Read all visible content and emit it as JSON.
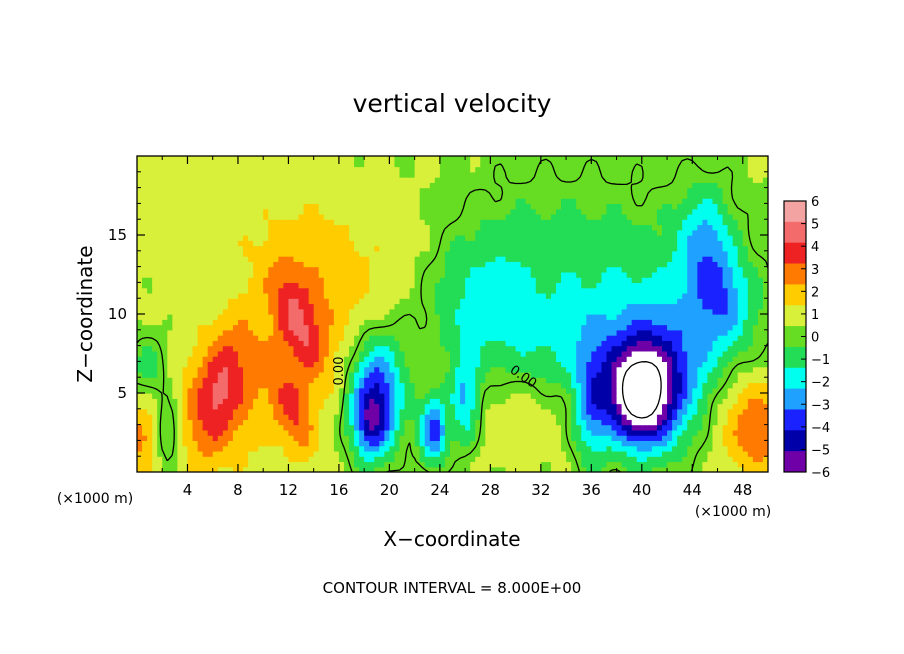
{
  "chart_data": {
    "type": "heatmap",
    "title": "vertical velocity",
    "xlabel": "X−coordinate",
    "ylabel": "Z−coordinate",
    "x_unit": "(×1000 m)",
    "y_unit": "(×1000 m)",
    "xlim": [
      0,
      50
    ],
    "ylim": [
      0,
      20
    ],
    "x_ticks": [
      4,
      8,
      12,
      16,
      20,
      24,
      28,
      32,
      36,
      40,
      44,
      48
    ],
    "y_ticks": [
      5,
      10,
      15
    ],
    "footer": "CONTOUR INTERVAL = 8.000E+00",
    "zero_contour_labels": [
      "0.00",
      "0.00"
    ],
    "colorbar": {
      "levels": [
        6,
        5,
        4,
        3,
        2,
        1,
        0,
        -1,
        -2,
        -3,
        -4,
        -5,
        -6
      ],
      "labels": [
        "6",
        "5",
        "4",
        "3",
        "2",
        "1",
        "0",
        "−1",
        "−2",
        "−3",
        "−4",
        "−5",
        "−6"
      ],
      "colors": [
        "#f4a3a3",
        "#f36b6b",
        "#ee2222",
        "#ff7a00",
        "#ffcc00",
        "#d8f03a",
        "#66dd22",
        "#22dd55",
        "#00ffee",
        "#1fa2ff",
        "#1a22ff",
        "#0000a8",
        "#6f00a8"
      ]
    },
    "features": [
      {
        "x": 6.5,
        "z": 5.2,
        "w": 2.6,
        "sx": 1.4,
        "sz": 3.0,
        "rot": -20
      },
      {
        "x": 6.0,
        "z": 4.0,
        "w": 1.4,
        "sx": 3.0,
        "sz": 3.5,
        "rot": 0
      },
      {
        "x": 12.8,
        "z": 9.5,
        "w": 2.6,
        "sx": 1.1,
        "sz": 2.6,
        "rot": 25
      },
      {
        "x": 12.5,
        "z": 3.5,
        "w": 2.3,
        "sx": 1.0,
        "sz": 2.0,
        "rot": 20
      },
      {
        "x": 14.5,
        "z": 11.5,
        "w": 1.7,
        "sx": 3.5,
        "sz": 3.5,
        "rot": 0
      },
      {
        "x": 11.0,
        "z": 6.0,
        "w": 1.1,
        "sx": 3.0,
        "sz": 3.0,
        "rot": 0
      },
      {
        "x": 0.3,
        "z": 2.3,
        "w": 2.2,
        "sx": 0.9,
        "sz": 1.6,
        "rot": 0
      },
      {
        "x": 49.5,
        "z": 2.5,
        "w": 2.3,
        "sx": 1.8,
        "sz": 2.0,
        "rot": 0
      },
      {
        "x": 47.5,
        "z": 4.0,
        "w": 1.2,
        "sx": 2.5,
        "sz": 2.5,
        "rot": 0
      },
      {
        "x": 7.0,
        "z": 16.0,
        "w": 0.5,
        "sx": 6.0,
        "sz": 3.0,
        "rot": 0
      },
      {
        "x": 22.0,
        "z": 14.0,
        "w": 0.6,
        "sx": 4.0,
        "sz": 3.0,
        "rot": 0
      },
      {
        "x": 30.0,
        "z": 4.5,
        "w": 0.7,
        "sx": 4.0,
        "sz": 2.5,
        "rot": 0
      },
      {
        "x": 2.5,
        "z": 2.5,
        "w": -2.2,
        "sx": 0.8,
        "sz": 1.5,
        "rot": 0
      },
      {
        "x": 1.0,
        "z": 6.5,
        "w": -1.6,
        "sx": 1.2,
        "sz": 1.6,
        "rot": 0
      },
      {
        "x": 19.0,
        "z": 5.0,
        "w": -4.8,
        "sx": 1.5,
        "sz": 2.5,
        "rot": 0
      },
      {
        "x": 18.5,
        "z": 3.0,
        "w": -3.0,
        "sx": 1.0,
        "sz": 1.5,
        "rot": 0
      },
      {
        "x": 23.5,
        "z": 2.7,
        "w": -4.6,
        "sx": 0.8,
        "sz": 1.5,
        "rot": 0
      },
      {
        "x": 26.0,
        "z": 4.5,
        "w": -3.2,
        "sx": 0.8,
        "sz": 2.0,
        "rot": 0
      },
      {
        "x": 36.0,
        "z": 4.0,
        "w": -3.0,
        "sx": 1.0,
        "sz": 2.5,
        "rot": 0
      },
      {
        "x": 39.8,
        "z": 4.8,
        "w": -7.5,
        "sx": 1.7,
        "sz": 2.0,
        "rot": 0
      },
      {
        "x": 41.5,
        "z": 5.5,
        "w": -3.5,
        "sx": 3.0,
        "sz": 3.0,
        "rot": 0
      },
      {
        "x": 45.0,
        "z": 14.5,
        "w": -2.8,
        "sx": 1.5,
        "sz": 2.5,
        "rot": 0
      },
      {
        "x": 46.5,
        "z": 11.0,
        "w": -2.2,
        "sx": 1.5,
        "sz": 2.0,
        "rot": 0
      },
      {
        "x": 34.0,
        "z": 13.0,
        "w": -1.5,
        "sx": 8.0,
        "sz": 4.0,
        "rot": 0
      },
      {
        "x": 27.0,
        "z": 11.0,
        "w": -1.5,
        "sx": 3.0,
        "sz": 3.0,
        "rot": 0
      },
      {
        "x": 42.0,
        "z": 9.0,
        "w": -1.5,
        "sx": 6.0,
        "sz": 3.0,
        "rot": 0
      },
      {
        "x": 33.0,
        "z": 7.5,
        "w": -1.2,
        "sx": 5.0,
        "sz": 2.0,
        "rot": 0
      }
    ]
  }
}
